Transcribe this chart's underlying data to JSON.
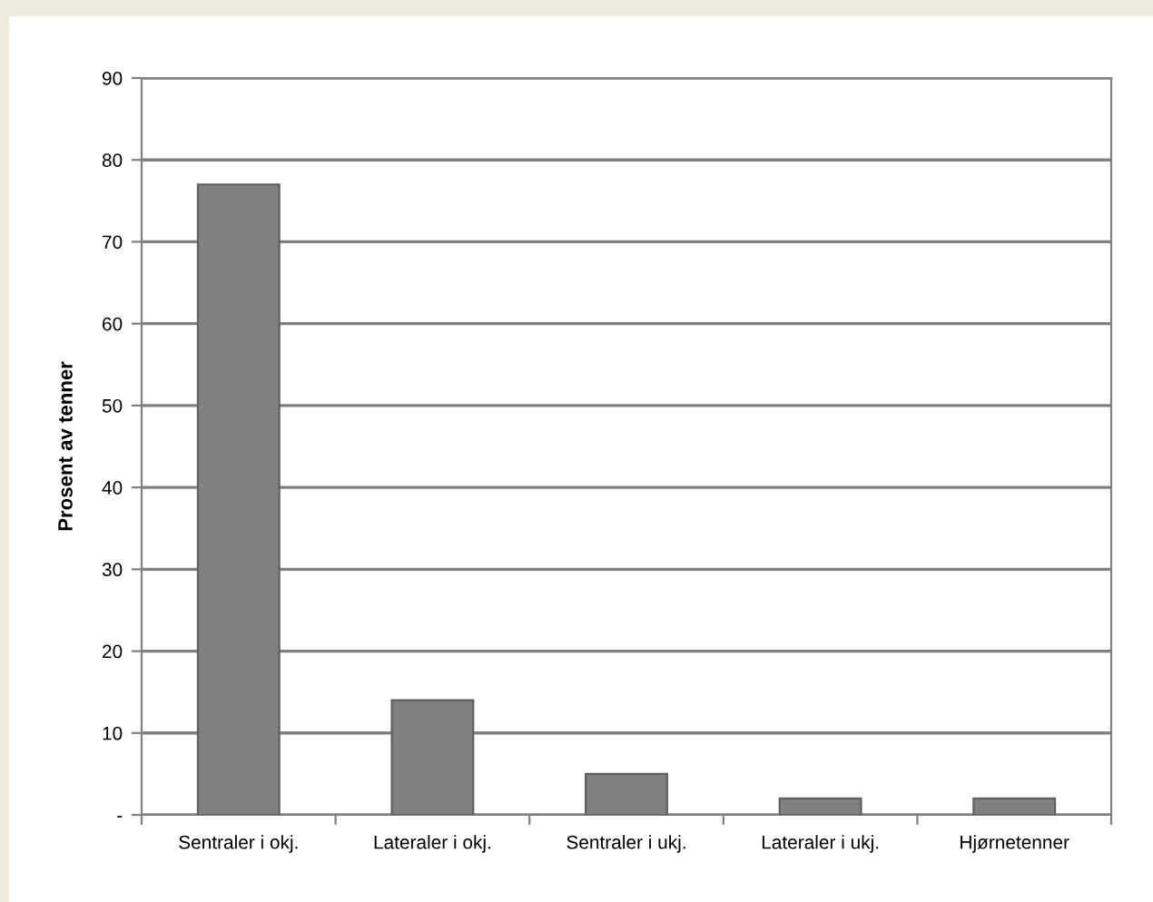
{
  "chart_data": {
    "type": "bar",
    "ylabel": "Prosent av tenner",
    "categories": [
      "Sentraler i okj.",
      "Lateraler i okj.",
      "Sentraler i ukj.",
      "Lateraler i ukj.",
      "Hjørnetenner"
    ],
    "values": [
      77,
      14,
      5,
      2,
      2
    ],
    "color": "#808080",
    "ylim": [
      0,
      90
    ],
    "yticks": [
      {
        "value": 0,
        "label": "-"
      },
      10,
      20,
      30,
      40,
      50,
      60,
      70,
      80,
      90
    ],
    "grid": "y",
    "legend": false
  }
}
